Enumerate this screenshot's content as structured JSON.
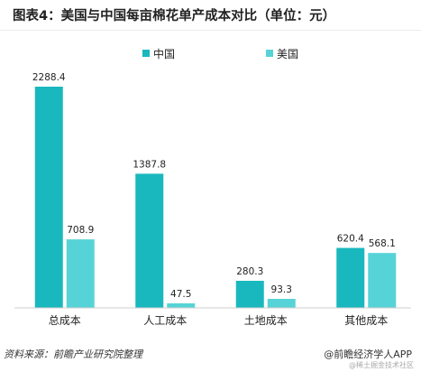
{
  "header": {
    "title": "图表4：美国与中国每亩棉花单产成本对比（单位：元）"
  },
  "chart_data": {
    "type": "bar",
    "title": "图表4：美国与中国每亩棉花单产成本对比（单位：元）",
    "categories": [
      "总成本",
      "人工成本",
      "土地成本",
      "其他成本"
    ],
    "series": [
      {
        "name": "中国",
        "values": [
          2288.4,
          1387.8,
          280.3,
          620.4
        ],
        "color": "#19b8be"
      },
      {
        "name": "美国",
        "values": [
          708.9,
          47.5,
          93.3,
          568.1
        ],
        "color": "#56d3d6"
      }
    ],
    "xlabel": "",
    "ylabel": "",
    "ylim": [
      0,
      2288.4
    ],
    "grid": false,
    "legend_position": "top-center"
  },
  "footer": {
    "source": "资料来源：前瞻产业研究院整理",
    "credit": "@前瞻经济学人APP",
    "watermark": "@稀土掘金技术社区"
  }
}
